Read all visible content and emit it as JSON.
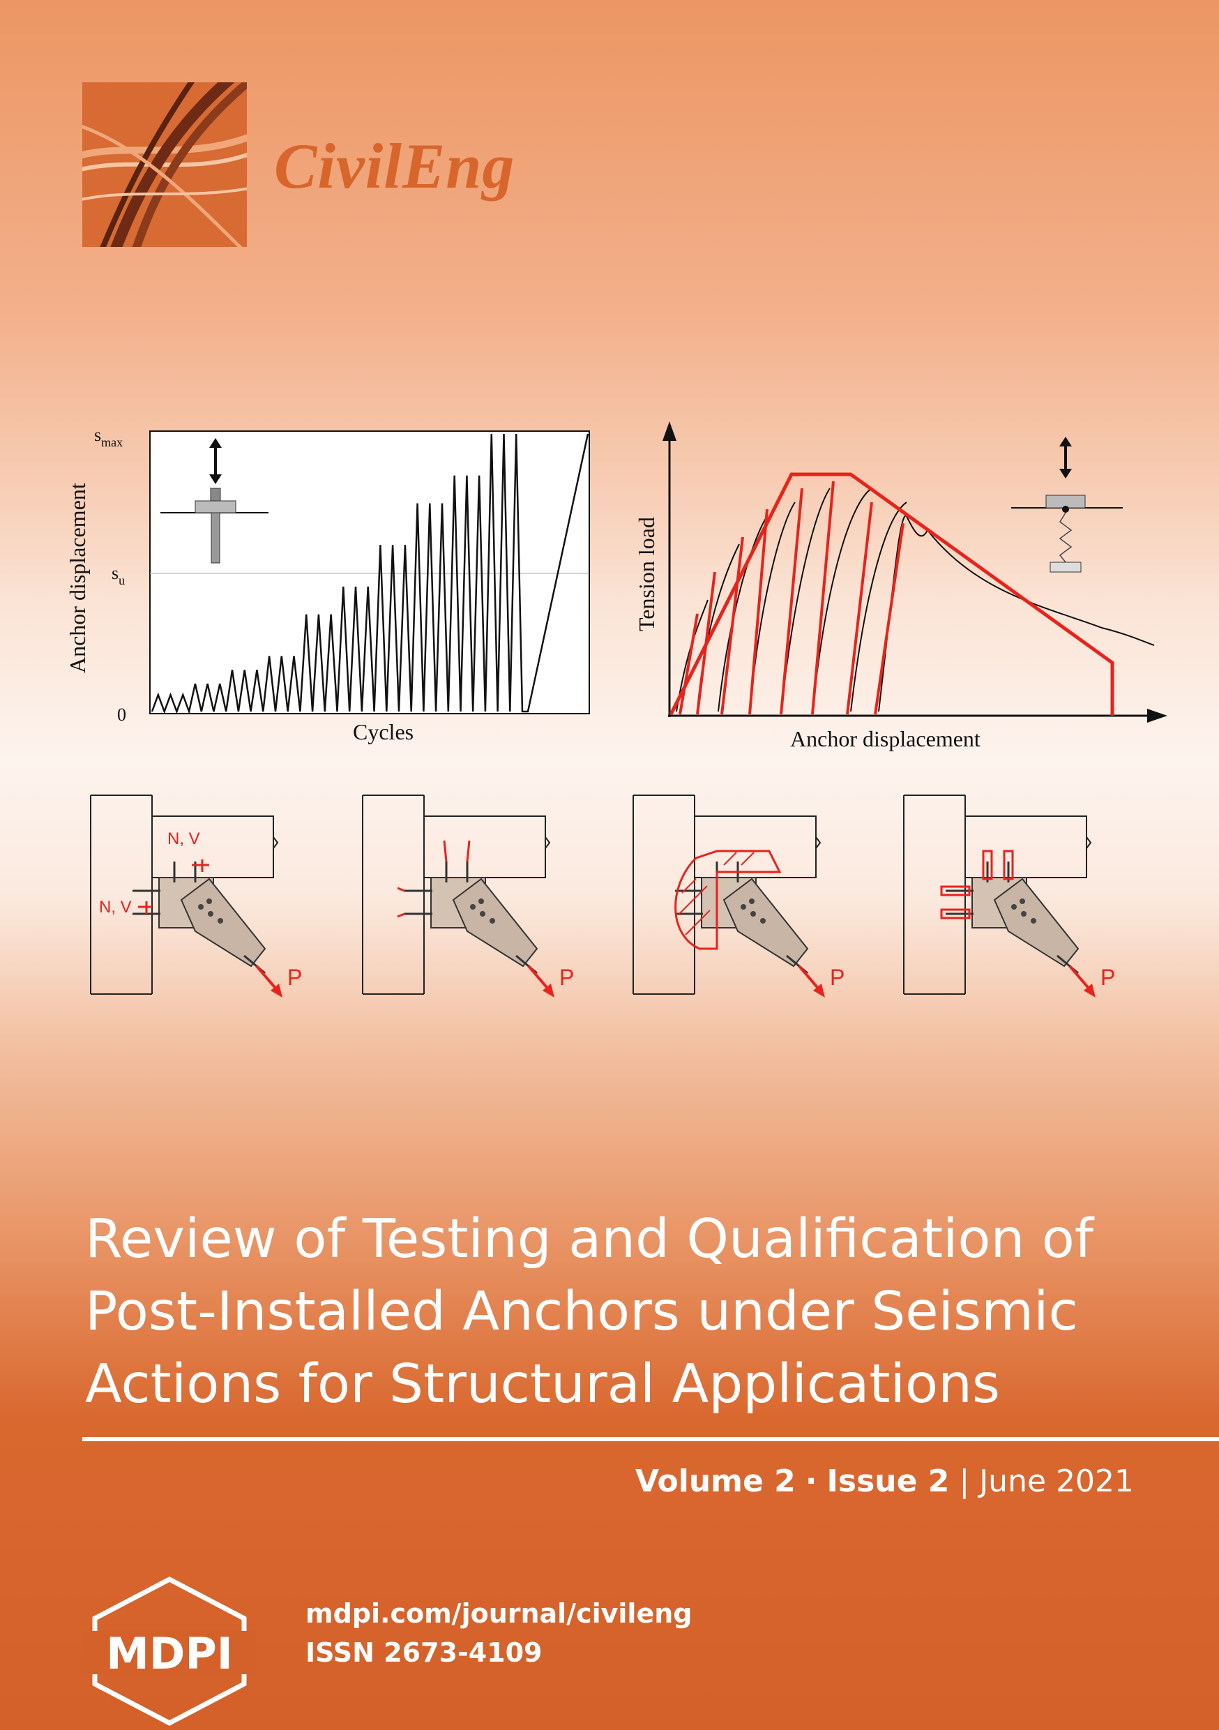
{
  "journal": {
    "name": "CivilEng"
  },
  "figures": {
    "displacement_chart": {
      "ylabel": "Anchor displacement",
      "xlabel": "Cycles",
      "tick_smax_main": "s",
      "tick_smax_sub": "max",
      "tick_su_main": "s",
      "tick_su_sub": "u",
      "tick_zero": "0"
    },
    "load_chart": {
      "ylabel": "Tension load",
      "xlabel": "Anchor displacement"
    },
    "connection_diagrams": {
      "force_label_top": "N, V",
      "force_label_side": "N, V",
      "load_label": "P"
    }
  },
  "article": {
    "title_lines": [
      "Review of Testing and Qualification of",
      "Post-Installed Anchors under Seismic",
      "Actions for Structural Applications"
    ]
  },
  "issue": {
    "volume": "Volume 2",
    "separator": "·",
    "issue": "Issue 2",
    "bar": "|",
    "date": "June 2021"
  },
  "publisher": {
    "logo_text": "MDPI",
    "url": "mdpi.com/journal/civileng",
    "issn": "ISSN 2673-4109"
  },
  "colors": {
    "accent": "#d8652c",
    "red": "#e8231c"
  }
}
